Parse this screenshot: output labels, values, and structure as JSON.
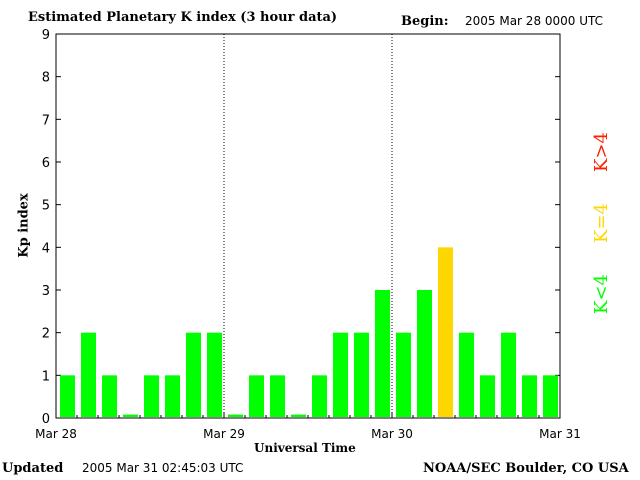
{
  "header": {
    "title": "Estimated Planetary K index (3 hour data)",
    "begin_label": "Begin:",
    "begin_date": "2005 Mar 28 0000 UTC"
  },
  "footer": {
    "updated_label": "Updated",
    "updated_date": "2005 Mar 31 02:45:03 UTC",
    "credit": "NOAA/SEC Boulder, CO USA"
  },
  "legend": {
    "high": "K>4",
    "eq": "K=4",
    "low": "K<4"
  },
  "colors": {
    "low": "#00ff00",
    "eq": "#ffd700",
    "high": "#ff2000",
    "axis": "#000000"
  },
  "chart_data": {
    "type": "bar",
    "title": "Estimated Planetary K index (3 hour data)",
    "xlabel": "Universal Time",
    "ylabel": "Kp index",
    "ylim": [
      0,
      9
    ],
    "yticks": [
      "0",
      "1",
      "2",
      "3",
      "4",
      "5",
      "6",
      "7",
      "8",
      "9"
    ],
    "xticks": [
      "Mar 28",
      "Mar 29",
      "Mar 30",
      "Mar 31"
    ],
    "day_dividers": [
      "Mar 29",
      "Mar 30"
    ],
    "values": [
      1,
      2,
      1,
      0,
      1,
      1,
      2,
      2,
      0,
      1,
      1,
      0,
      1,
      2,
      2,
      3,
      2,
      3,
      4,
      2,
      1,
      2,
      1,
      1
    ],
    "threshold_note": "green K<4, yellow K=4, red K>4"
  }
}
